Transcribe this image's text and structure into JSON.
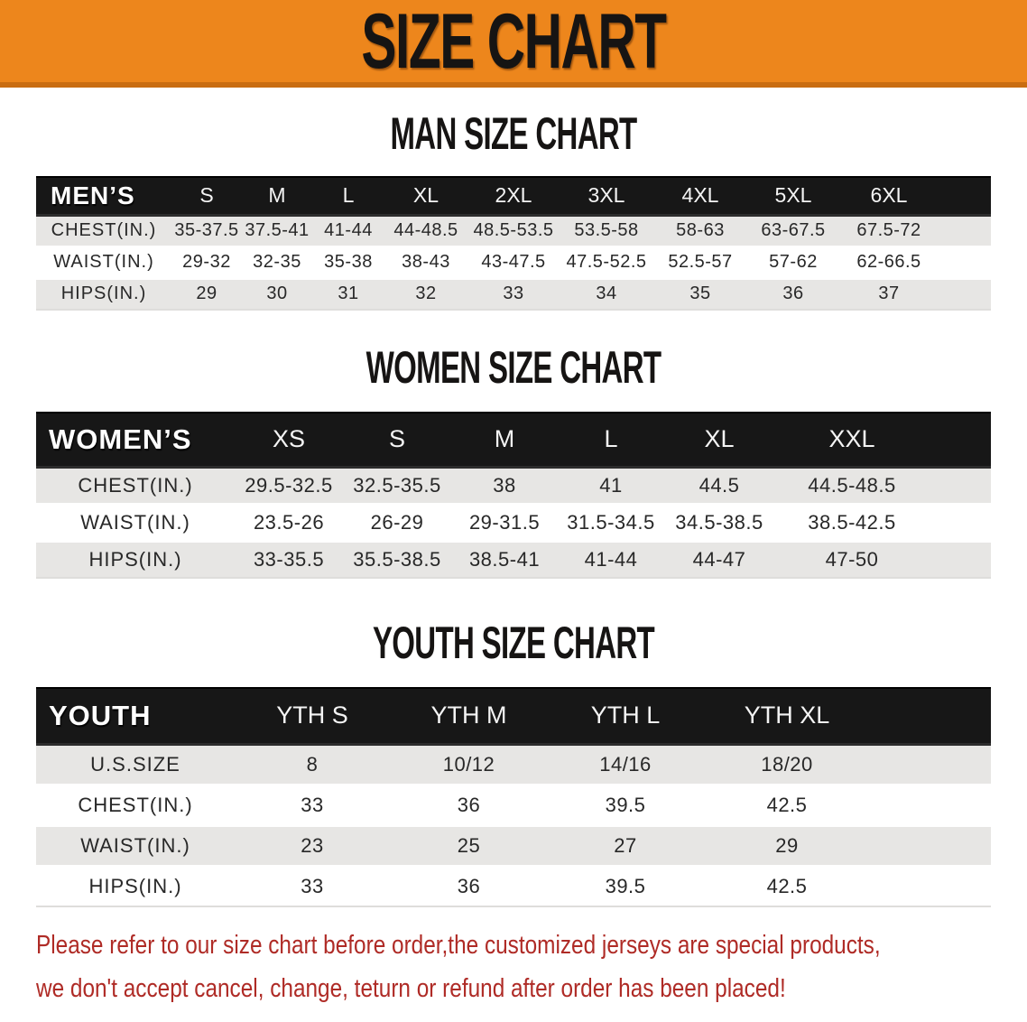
{
  "banner": {
    "title": "SIZE CHART"
  },
  "colors": {
    "banner_orange": "#ed861c",
    "banner_edge": "#c96d12",
    "header_bar": "#171717",
    "row_stripe": "#e7e6e4",
    "disclaimer_red": "#af2b26"
  },
  "sections": [
    {
      "id": "men",
      "heading": "MAN SIZE CHART",
      "table": {
        "header_label": "MEN’S",
        "columns": [
          "S",
          "M",
          "L",
          "XL",
          "2XL",
          "3XL",
          "4XL",
          "5XL",
          "6XL"
        ],
        "rows": [
          {
            "label": "CHEST(IN.)",
            "values": [
              "35-37.5",
              "37.5-41",
              "41-44",
              "44-48.5",
              "48.5-53.5",
              "53.5-58",
              "58-63",
              "63-67.5",
              "67.5-72"
            ]
          },
          {
            "label": "WAIST(IN.)",
            "values": [
              "29-32",
              "32-35",
              "35-38",
              "38-43",
              "43-47.5",
              "47.5-52.5",
              "52.5-57",
              "57-62",
              "62-66.5"
            ]
          },
          {
            "label": "HIPS(IN.)",
            "values": [
              "29",
              "30",
              "31",
              "32",
              "33",
              "34",
              "35",
              "36",
              "37"
            ]
          }
        ]
      }
    },
    {
      "id": "women",
      "heading": "WOMEN SIZE CHART",
      "table": {
        "header_label": "WOMEN’S",
        "columns": [
          "XS",
          "S",
          "M",
          "L",
          "XL",
          "XXL"
        ],
        "rows": [
          {
            "label": "CHEST(IN.)",
            "values": [
              "29.5-32.5",
              "32.5-35.5",
              "38",
              "41",
              "44.5",
              "44.5-48.5"
            ]
          },
          {
            "label": "WAIST(IN.)",
            "values": [
              "23.5-26",
              "26-29",
              "29-31.5",
              "31.5-34.5",
              "34.5-38.5",
              "38.5-42.5"
            ]
          },
          {
            "label": "HIPS(IN.)",
            "values": [
              "33-35.5",
              "35.5-38.5",
              "38.5-41",
              "41-44",
              "44-47",
              "47-50"
            ]
          }
        ]
      }
    },
    {
      "id": "youth",
      "heading": "YOUTH SIZE CHART",
      "table": {
        "header_label": "YOUTH",
        "columns": [
          "YTH S",
          "YTH M",
          "YTH L",
          "YTH XL"
        ],
        "rows": [
          {
            "label": "U.S.SIZE",
            "values": [
              "8",
              "10/12",
              "14/16",
              "18/20"
            ]
          },
          {
            "label": "CHEST(IN.)",
            "values": [
              "33",
              "36",
              "39.5",
              "42.5"
            ]
          },
          {
            "label": "WAIST(IN.)",
            "values": [
              "23",
              "25",
              "27",
              "29"
            ]
          },
          {
            "label": "HIPS(IN.)",
            "values": [
              "33",
              "36",
              "39.5",
              "42.5"
            ]
          }
        ]
      }
    }
  ],
  "disclaimer": {
    "line1": "Please refer to our size chart before order,the customized jerseys are special products,",
    "line2": "we don't accept cancel, change, teturn or refund after order has been placed!"
  }
}
